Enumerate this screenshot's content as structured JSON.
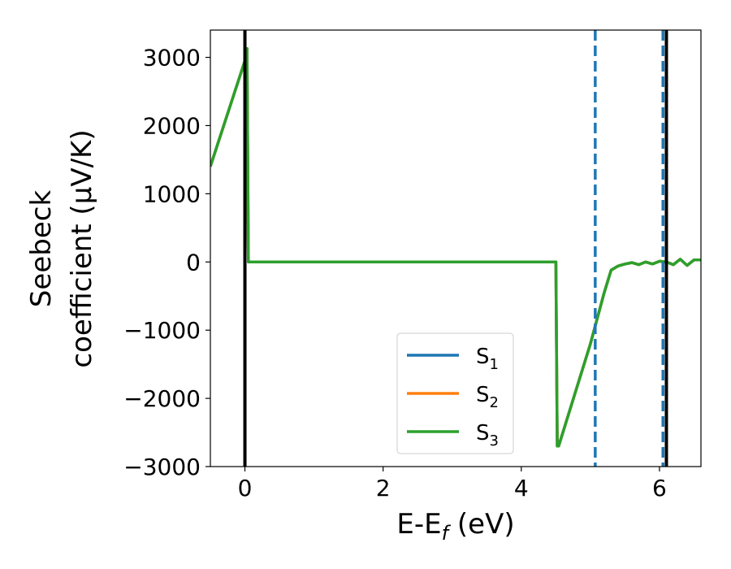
{
  "chart_data": {
    "type": "line",
    "xlabel": "E-E",
    "xlabel_sub": "f",
    "xlabel_unit": " (eV)",
    "ylabel_line1": "Seebeck",
    "ylabel_line2": "coefficient  (μV/K)",
    "xlim": [
      -0.5,
      6.6
    ],
    "ylim": [
      -3000,
      3400
    ],
    "xticks": [
      0,
      2,
      4,
      6
    ],
    "xtick_labels": [
      "0",
      "2",
      "4",
      "6"
    ],
    "yticks": [
      -3000,
      -2000,
      -1000,
      0,
      1000,
      2000,
      3000
    ],
    "ytick_labels": [
      "−3000",
      "−2000",
      "−1000",
      "0",
      "1000",
      "2000",
      "3000"
    ],
    "grid": false,
    "legend_position": "lower-center",
    "series": [
      {
        "name": "S",
        "sub": "1",
        "color": "#1f77b4",
        "x": [
          -0.5,
          0.0,
          0.01,
          0.03,
          0.05,
          4.5,
          4.52,
          4.54,
          5.0,
          5.2,
          5.3,
          5.4,
          5.5,
          5.6,
          5.7,
          5.8,
          5.9,
          6.0,
          6.1,
          6.2,
          6.3,
          6.4,
          6.5,
          6.6
        ],
        "y": [
          1400,
          2950,
          3130,
          3130,
          0,
          0,
          -2700,
          -2700,
          -1200,
          -450,
          -120,
          -60,
          -30,
          -10,
          -40,
          0,
          -30,
          10,
          0,
          -40,
          40,
          -50,
          30,
          30
        ]
      },
      {
        "name": "S",
        "sub": "2",
        "color": "#ff7f0e",
        "x": [
          -0.5,
          0.0,
          0.01,
          0.03,
          0.05,
          4.5,
          4.52,
          4.54,
          5.0,
          5.2,
          5.3,
          5.4,
          5.5,
          5.6,
          5.7,
          5.8,
          5.9,
          6.0,
          6.1,
          6.2,
          6.3,
          6.4,
          6.5,
          6.6
        ],
        "y": [
          1400,
          2950,
          3130,
          3130,
          0,
          0,
          -2700,
          -2700,
          -1200,
          -450,
          -120,
          -60,
          -30,
          -10,
          -40,
          0,
          -30,
          10,
          0,
          -40,
          40,
          -50,
          30,
          30
        ]
      },
      {
        "name": "S",
        "sub": "3",
        "color": "#2ca02c",
        "x": [
          -0.5,
          0.0,
          0.01,
          0.03,
          0.05,
          4.5,
          4.52,
          4.54,
          5.0,
          5.2,
          5.3,
          5.4,
          5.5,
          5.6,
          5.7,
          5.8,
          5.9,
          6.0,
          6.1,
          6.2,
          6.3,
          6.4,
          6.5,
          6.6
        ],
        "y": [
          1400,
          2950,
          3130,
          3130,
          0,
          0,
          -2700,
          -2700,
          -1200,
          -450,
          -120,
          -60,
          -30,
          -10,
          -40,
          0,
          -30,
          10,
          0,
          -40,
          40,
          -50,
          30,
          30
        ]
      }
    ],
    "vlines": [
      {
        "x": 0.0,
        "color": "#000000",
        "style": "solid"
      },
      {
        "x": 6.1,
        "color": "#000000",
        "style": "solid"
      },
      {
        "x": 5.07,
        "color": "#1f77b4",
        "style": "dashed"
      },
      {
        "x": 6.05,
        "color": "#1f77b4",
        "style": "dashed"
      }
    ]
  }
}
